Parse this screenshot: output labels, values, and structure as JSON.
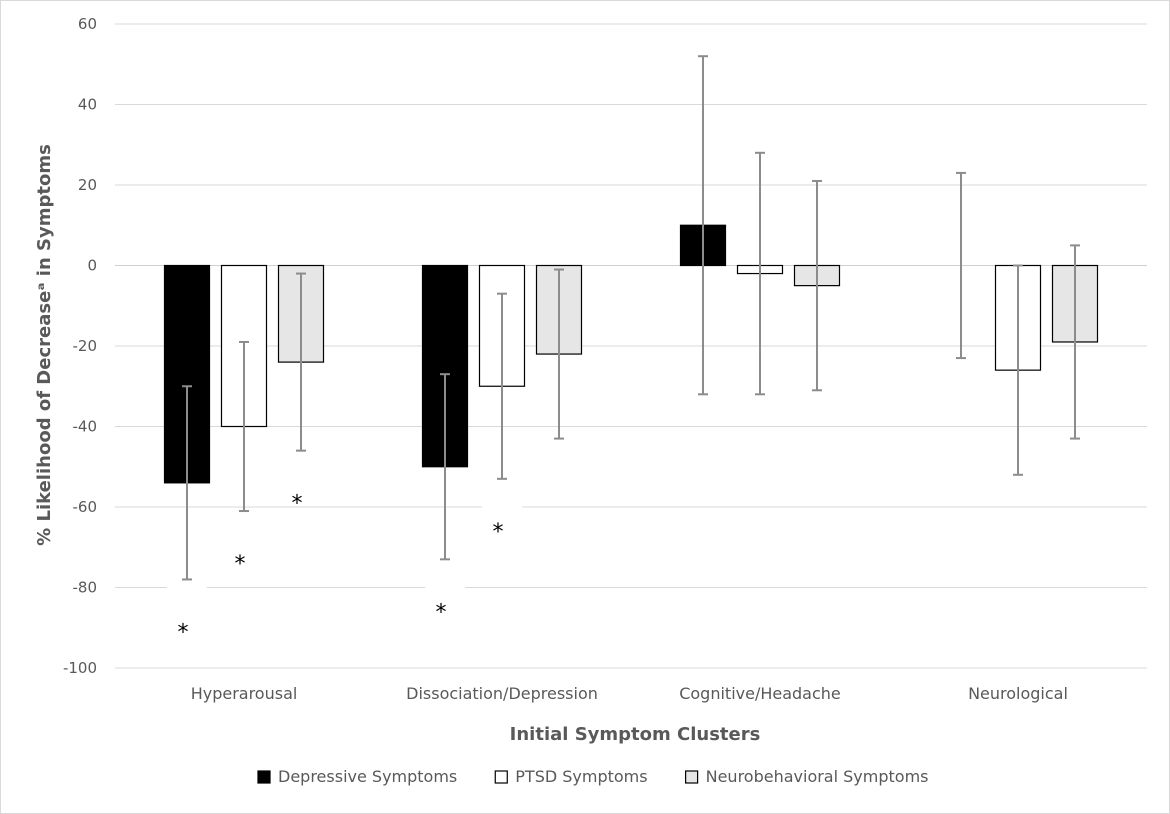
{
  "chart_data": {
    "type": "bar",
    "title": "",
    "xlabel": "Initial Symptom Clusters",
    "ylabel": "% Likelihood of Decreaseᵃ in Symptoms",
    "ylim": [
      -100,
      60
    ],
    "yticks": [
      -100,
      -80,
      -60,
      -40,
      -20,
      0,
      20,
      40,
      60
    ],
    "grid": true,
    "legend_position": "bottom",
    "categories": [
      "Hyperarousal",
      "Dissociation/Depression",
      "Cognitive/Headache",
      "Neurological"
    ],
    "series": [
      {
        "name": "Depressive Symptoms",
        "color": "#000000",
        "values": [
          -54,
          -50,
          10,
          0
        ],
        "error_low": [
          -78,
          -73,
          -32,
          -23
        ],
        "error_high": [
          -30,
          -27,
          52,
          23
        ],
        "significant": [
          true,
          true,
          false,
          false
        ]
      },
      {
        "name": "PTSD Symptoms",
        "color": "#ffffff",
        "values": [
          -40,
          -30,
          -2,
          -26
        ],
        "error_low": [
          -61,
          -53,
          -32,
          -52
        ],
        "error_high": [
          -19,
          -7,
          28,
          0
        ],
        "significant": [
          true,
          true,
          false,
          false
        ]
      },
      {
        "name": "Neurobehavioral Symptoms",
        "color": "#e7e6e6",
        "values": [
          -24,
          -22,
          -5,
          -19
        ],
        "error_low": [
          -46,
          -43,
          -31,
          -43
        ],
        "error_high": [
          -2,
          -1,
          21,
          5
        ],
        "significant": [
          true,
          false,
          false,
          false
        ]
      }
    ],
    "significance_marker": "*"
  }
}
